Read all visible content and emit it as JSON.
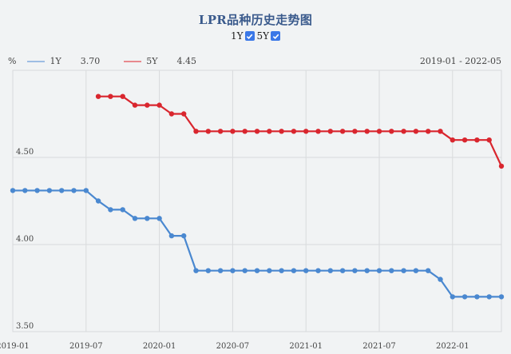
{
  "header": {
    "title": "LPR品种历史走势图",
    "toggles": [
      {
        "label": "1Y",
        "checked": true
      },
      {
        "label": "5Y",
        "checked": true
      }
    ]
  },
  "legend": {
    "unit": "%",
    "items": [
      {
        "name": "1Y",
        "value": "3.70",
        "color": "#4a88d0"
      },
      {
        "name": "5Y",
        "value": "4.45",
        "color": "#d9262e"
      }
    ],
    "range": "2019-01 - 2022-05"
  },
  "chart_data": {
    "type": "line",
    "title": "LPR品种历史走势图",
    "xlabel": "",
    "ylabel": "%",
    "ylim": [
      3.5,
      4.9
    ],
    "yticks": [
      "3.50",
      "4.00",
      "4.50"
    ],
    "xticks": [
      "2019-01",
      "2019-07",
      "2020-01",
      "2020-07",
      "2021-01",
      "2021-07",
      "2022-01"
    ],
    "grid": true,
    "legend_position": "top-left",
    "x": [
      "2019-01",
      "2019-02",
      "2019-03",
      "2019-04",
      "2019-05",
      "2019-06",
      "2019-07",
      "2019-08",
      "2019-09",
      "2019-10",
      "2019-11",
      "2019-12",
      "2020-01",
      "2020-02",
      "2020-03",
      "2020-04",
      "2020-05",
      "2020-06",
      "2020-07",
      "2020-08",
      "2020-09",
      "2020-10",
      "2020-11",
      "2020-12",
      "2021-01",
      "2021-02",
      "2021-03",
      "2021-04",
      "2021-05",
      "2021-06",
      "2021-07",
      "2021-08",
      "2021-09",
      "2021-10",
      "2021-11",
      "2021-12",
      "2022-01",
      "2022-02",
      "2022-03",
      "2022-04",
      "2022-05"
    ],
    "series": [
      {
        "name": "1Y",
        "color": "#4a88d0",
        "values": [
          4.31,
          4.31,
          4.31,
          4.31,
          4.31,
          4.31,
          4.31,
          4.25,
          4.2,
          4.2,
          4.15,
          4.15,
          4.15,
          4.05,
          4.05,
          3.85,
          3.85,
          3.85,
          3.85,
          3.85,
          3.85,
          3.85,
          3.85,
          3.85,
          3.85,
          3.85,
          3.85,
          3.85,
          3.85,
          3.85,
          3.85,
          3.85,
          3.85,
          3.85,
          3.85,
          3.8,
          3.7,
          3.7,
          3.7,
          3.7,
          3.7
        ]
      },
      {
        "name": "5Y",
        "color": "#d9262e",
        "values": [
          null,
          null,
          null,
          null,
          null,
          null,
          null,
          4.85,
          4.85,
          4.85,
          4.8,
          4.8,
          4.8,
          4.75,
          4.75,
          4.65,
          4.65,
          4.65,
          4.65,
          4.65,
          4.65,
          4.65,
          4.65,
          4.65,
          4.65,
          4.65,
          4.65,
          4.65,
          4.65,
          4.65,
          4.65,
          4.65,
          4.65,
          4.65,
          4.65,
          4.65,
          4.6,
          4.6,
          4.6,
          4.6,
          4.45
        ]
      }
    ]
  }
}
